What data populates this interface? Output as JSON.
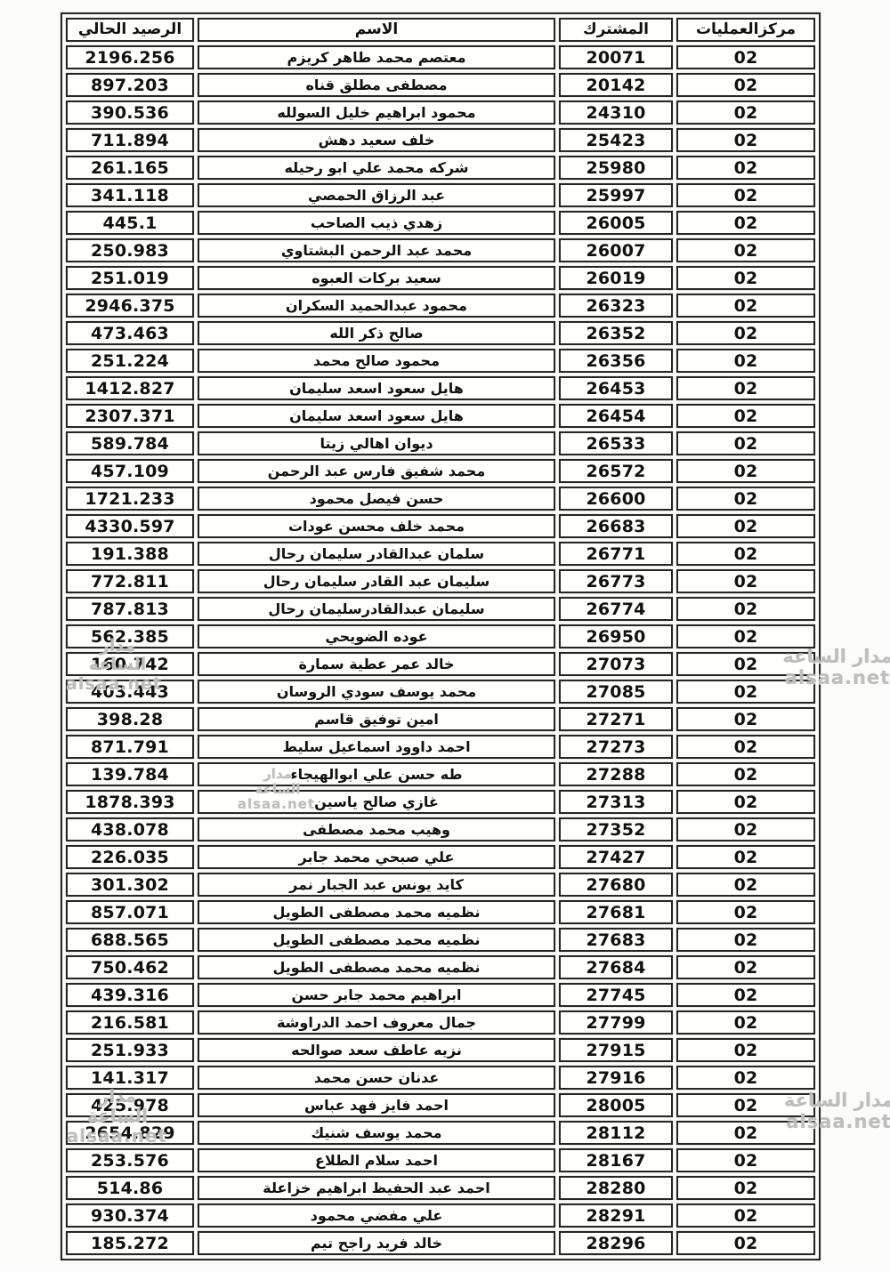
{
  "document": {
    "kind": "scanned-subscriber-balance-table"
  },
  "colors": {
    "page_background": "#fbfbf9",
    "cell_background": "#fffffe",
    "border": "#262626",
    "text": "#111111",
    "watermark": "#b2b0ac"
  },
  "watermark": {
    "line1": "مدار الساعة",
    "line2": "alsaa.net"
  },
  "table": {
    "headers": {
      "ops": "مركزالعمليات",
      "subscriber": "المشترك",
      "name": "الاسم",
      "balance": "الرصيد الحالي"
    },
    "rows": [
      {
        "ops": "02",
        "subscriber": "20071",
        "name": "معتصم محمد طاهر كريزم",
        "balance": "2196.256"
      },
      {
        "ops": "02",
        "subscriber": "20142",
        "name": "مصطفى مطلق قناه",
        "balance": "897.203"
      },
      {
        "ops": "02",
        "subscriber": "24310",
        "name": "محمود ابراهيم خليل السولله",
        "balance": "390.536"
      },
      {
        "ops": "02",
        "subscriber": "25423",
        "name": "خلف سعيد دهش",
        "balance": "711.894"
      },
      {
        "ops": "02",
        "subscriber": "25980",
        "name": "شركه محمد علي ابو رحيله",
        "balance": "261.165"
      },
      {
        "ops": "02",
        "subscriber": "25997",
        "name": "عبد الرزاق الحمصي",
        "balance": "341.118"
      },
      {
        "ops": "02",
        "subscriber": "26005",
        "name": "زهدي ذيب الصاحب",
        "balance": "445.1"
      },
      {
        "ops": "02",
        "subscriber": "26007",
        "name": "محمد عبد الرحمن البشتاوي",
        "balance": "250.983"
      },
      {
        "ops": "02",
        "subscriber": "26019",
        "name": "سعيد بركات العبوه",
        "balance": "251.019"
      },
      {
        "ops": "02",
        "subscriber": "26323",
        "name": "محمود عبدالحميد السكران",
        "balance": "2946.375"
      },
      {
        "ops": "02",
        "subscriber": "26352",
        "name": "صالح ذكر الله",
        "balance": "473.463"
      },
      {
        "ops": "02",
        "subscriber": "26356",
        "name": "محمود صالح محمد",
        "balance": "251.224"
      },
      {
        "ops": "02",
        "subscriber": "26453",
        "name": "هايل سعود اسعد سليمان",
        "balance": "1412.827"
      },
      {
        "ops": "02",
        "subscriber": "26454",
        "name": "هايل سعود اسعد سليمان",
        "balance": "2307.371"
      },
      {
        "ops": "02",
        "subscriber": "26533",
        "name": "ديوان اهالي زيتا",
        "balance": "589.784"
      },
      {
        "ops": "02",
        "subscriber": "26572",
        "name": "محمد شفيق فارس عبد الرحمن",
        "balance": "457.109"
      },
      {
        "ops": "02",
        "subscriber": "26600",
        "name": "حسن فيصل محمود",
        "balance": "1721.233"
      },
      {
        "ops": "02",
        "subscriber": "26683",
        "name": "محمد خلف محسن عودات",
        "balance": "4330.597"
      },
      {
        "ops": "02",
        "subscriber": "26771",
        "name": "سلمان عبدالقادر سليمان رحال",
        "balance": "191.388"
      },
      {
        "ops": "02",
        "subscriber": "26773",
        "name": "سليمان عبد القادر سليمان رحال",
        "balance": "772.811"
      },
      {
        "ops": "02",
        "subscriber": "26774",
        "name": "سليمان عبدالقادرسليمان رحال",
        "balance": "787.813"
      },
      {
        "ops": "02",
        "subscriber": "26950",
        "name": "عوده الضويحي",
        "balance": "562.385"
      },
      {
        "ops": "02",
        "subscriber": "27073",
        "name": "خالد عمر عطية سمارة",
        "balance": "160.742"
      },
      {
        "ops": "02",
        "subscriber": "27085",
        "name": "محمد يوسف سودي الروسان",
        "balance": "403.443"
      },
      {
        "ops": "02",
        "subscriber": "27271",
        "name": "امين توفيق قاسم",
        "balance": "398.28"
      },
      {
        "ops": "02",
        "subscriber": "27273",
        "name": "احمد داوود اسماعيل سليط",
        "balance": "871.791"
      },
      {
        "ops": "02",
        "subscriber": "27288",
        "name": "طه حسن علي ابوالهيجاء",
        "balance": "139.784"
      },
      {
        "ops": "02",
        "subscriber": "27313",
        "name": "غازي صالح ياسين",
        "balance": "1878.393"
      },
      {
        "ops": "02",
        "subscriber": "27352",
        "name": "وهيب محمد مصطفى",
        "balance": "438.078"
      },
      {
        "ops": "02",
        "subscriber": "27427",
        "name": "علي صبحي محمد جابر",
        "balance": "226.035"
      },
      {
        "ops": "02",
        "subscriber": "27680",
        "name": "كايد يونس عبد الجبار نمر",
        "balance": "301.302"
      },
      {
        "ops": "02",
        "subscriber": "27681",
        "name": "نظميه محمد مصطفى الطويل",
        "balance": "857.071"
      },
      {
        "ops": "02",
        "subscriber": "27683",
        "name": "نظميه محمد مصطفى الطويل",
        "balance": "688.565"
      },
      {
        "ops": "02",
        "subscriber": "27684",
        "name": "نظميه محمد مصطفى الطويل",
        "balance": "750.462"
      },
      {
        "ops": "02",
        "subscriber": "27745",
        "name": "ابراهيم محمد جابر حسن",
        "balance": "439.316"
      },
      {
        "ops": "02",
        "subscriber": "27799",
        "name": "جمال معروف احمد الدراوشة",
        "balance": "216.581"
      },
      {
        "ops": "02",
        "subscriber": "27915",
        "name": "نزيه عاطف سعد صوالحه",
        "balance": "251.933"
      },
      {
        "ops": "02",
        "subscriber": "27916",
        "name": "عدنان حسن محمد",
        "balance": "141.317"
      },
      {
        "ops": "02",
        "subscriber": "28005",
        "name": "احمد فايز فهد عباس",
        "balance": "425.978"
      },
      {
        "ops": "02",
        "subscriber": "28112",
        "name": "محمد يوسف شنيك",
        "balance": "2654.829"
      },
      {
        "ops": "02",
        "subscriber": "28167",
        "name": "احمد سلام الطلاع",
        "balance": "253.576"
      },
      {
        "ops": "02",
        "subscriber": "28280",
        "name": "احمد عبد الحفيظ ابراهيم خزاعلة",
        "balance": "514.86"
      },
      {
        "ops": "02",
        "subscriber": "28291",
        "name": "علي مفضي محمود",
        "balance": "930.374"
      },
      {
        "ops": "02",
        "subscriber": "28296",
        "name": "خالد فريد راجح تيم",
        "balance": "185.272"
      }
    ]
  }
}
